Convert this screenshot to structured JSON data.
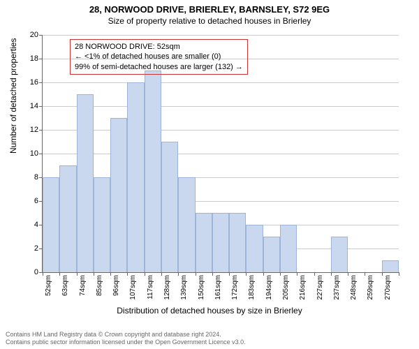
{
  "title": "28, NORWOOD DRIVE, BRIERLEY, BARNSLEY, S72 9EG",
  "subtitle": "Size of property relative to detached houses in Brierley",
  "chart": {
    "type": "histogram",
    "ylabel": "Number of detached properties",
    "xlabel": "Distribution of detached houses by size in Brierley",
    "ylim": [
      0,
      20
    ],
    "ytick_step": 2,
    "yticks": [
      0,
      2,
      4,
      6,
      8,
      10,
      12,
      14,
      16,
      18,
      20
    ],
    "categories": [
      "52sqm",
      "63sqm",
      "74sqm",
      "85sqm",
      "96sqm",
      "107sqm",
      "117sqm",
      "128sqm",
      "139sqm",
      "150sqm",
      "161sqm",
      "172sqm",
      "183sqm",
      "194sqm",
      "205sqm",
      "216sqm",
      "227sqm",
      "237sqm",
      "248sqm",
      "259sqm",
      "270sqm"
    ],
    "values": [
      8,
      9,
      15,
      8,
      13,
      16,
      17,
      11,
      8,
      5,
      5,
      5,
      4,
      3,
      4,
      0,
      0,
      3,
      0,
      0,
      1
    ],
    "bar_color": "#c9d8ef",
    "bar_border_color": "#9db4d8",
    "grid_color": "#cccccc",
    "background_color": "#ffffff",
    "axis_color": "#666666",
    "bar_width_ratio": 1.0,
    "label_fontsize": 12,
    "tick_fontsize": 11,
    "xtick_fontsize": 10,
    "title_fontsize": 13
  },
  "annotation": {
    "line1": "28 NORWOOD DRIVE: 52sqm",
    "line2": "← <1% of detached houses are smaller (0)",
    "line3": "99% of semi-detached houses are larger (132) →",
    "border_color": "#cc3333",
    "text_color": "#000000"
  },
  "footer": {
    "line1": "Contains HM Land Registry data © Crown copyright and database right 2024.",
    "line2": "Contains public sector information licensed under the Open Government Licence v3.0."
  }
}
